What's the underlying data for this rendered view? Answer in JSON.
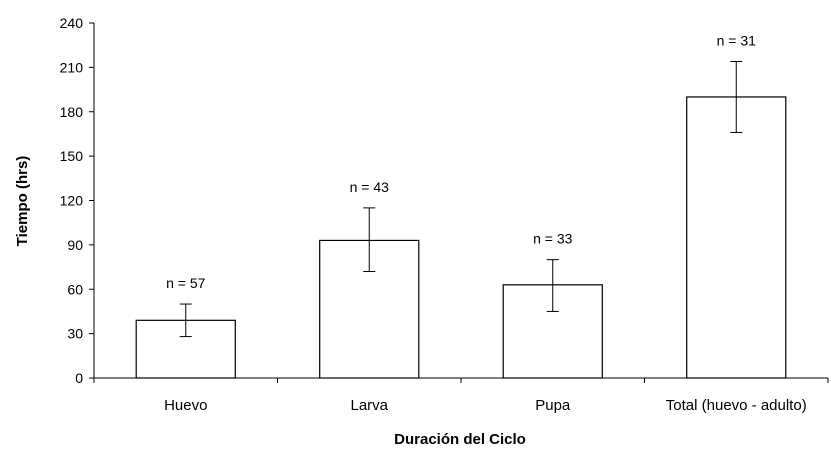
{
  "chart_data": {
    "type": "bar",
    "title": "",
    "xlabel": "Duración del Ciclo",
    "ylabel": "Tiempo (hrs)",
    "ylim": [
      0,
      240
    ],
    "yticks": [
      0,
      30,
      60,
      90,
      120,
      150,
      180,
      210,
      240
    ],
    "categories": [
      "Huevo",
      "Larva",
      "Pupa",
      "Total (huevo - adulto)"
    ],
    "values": [
      39,
      93,
      63,
      190
    ],
    "error_low": [
      28,
      72,
      45,
      166
    ],
    "error_high": [
      50,
      115,
      80,
      214
    ],
    "sample_labels": [
      "n = 57",
      "n = 43",
      "n = 33",
      "n = 31"
    ],
    "grid": false,
    "legend": "none",
    "colors": {
      "bar_fill": "#ffffff",
      "bar_stroke": "#000000"
    }
  }
}
